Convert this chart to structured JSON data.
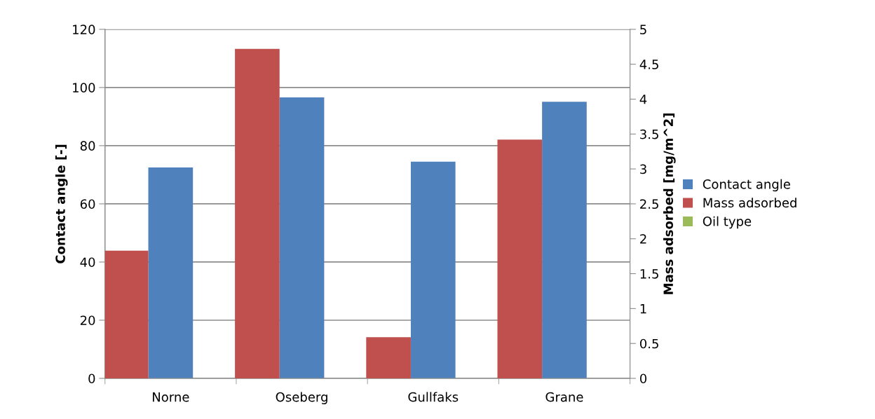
{
  "chart_data": {
    "type": "bar",
    "categories": [
      "Norne",
      "Oseberg",
      "Gullfaks",
      "Grane"
    ],
    "ylabel": "Contact angle [-]",
    "y2label": "Mass adsorbed [mg/m^2]",
    "ylim": [
      0,
      120
    ],
    "yticks": [
      0,
      20,
      40,
      60,
      80,
      100,
      120
    ],
    "y2lim": [
      0,
      5
    ],
    "y2ticks": [
      0,
      0.5,
      1,
      1.5,
      2,
      2.5,
      3,
      3.5,
      4,
      4.5,
      5
    ],
    "grid": "y",
    "legend": "right",
    "series": [
      {
        "name": "Contact angle",
        "color": "#4f81bd",
        "values": [
          72.5,
          96.6,
          74.5,
          95.1
        ]
      },
      {
        "name": "Mass adsorbed",
        "color": "#c0504d",
        "axis": "y2",
        "values": [
          1.83,
          4.72,
          0.59,
          3.42
        ]
      },
      {
        "name": "Oil type",
        "color": "#9bbb59",
        "values": [
          null,
          null,
          null,
          null
        ]
      }
    ]
  }
}
